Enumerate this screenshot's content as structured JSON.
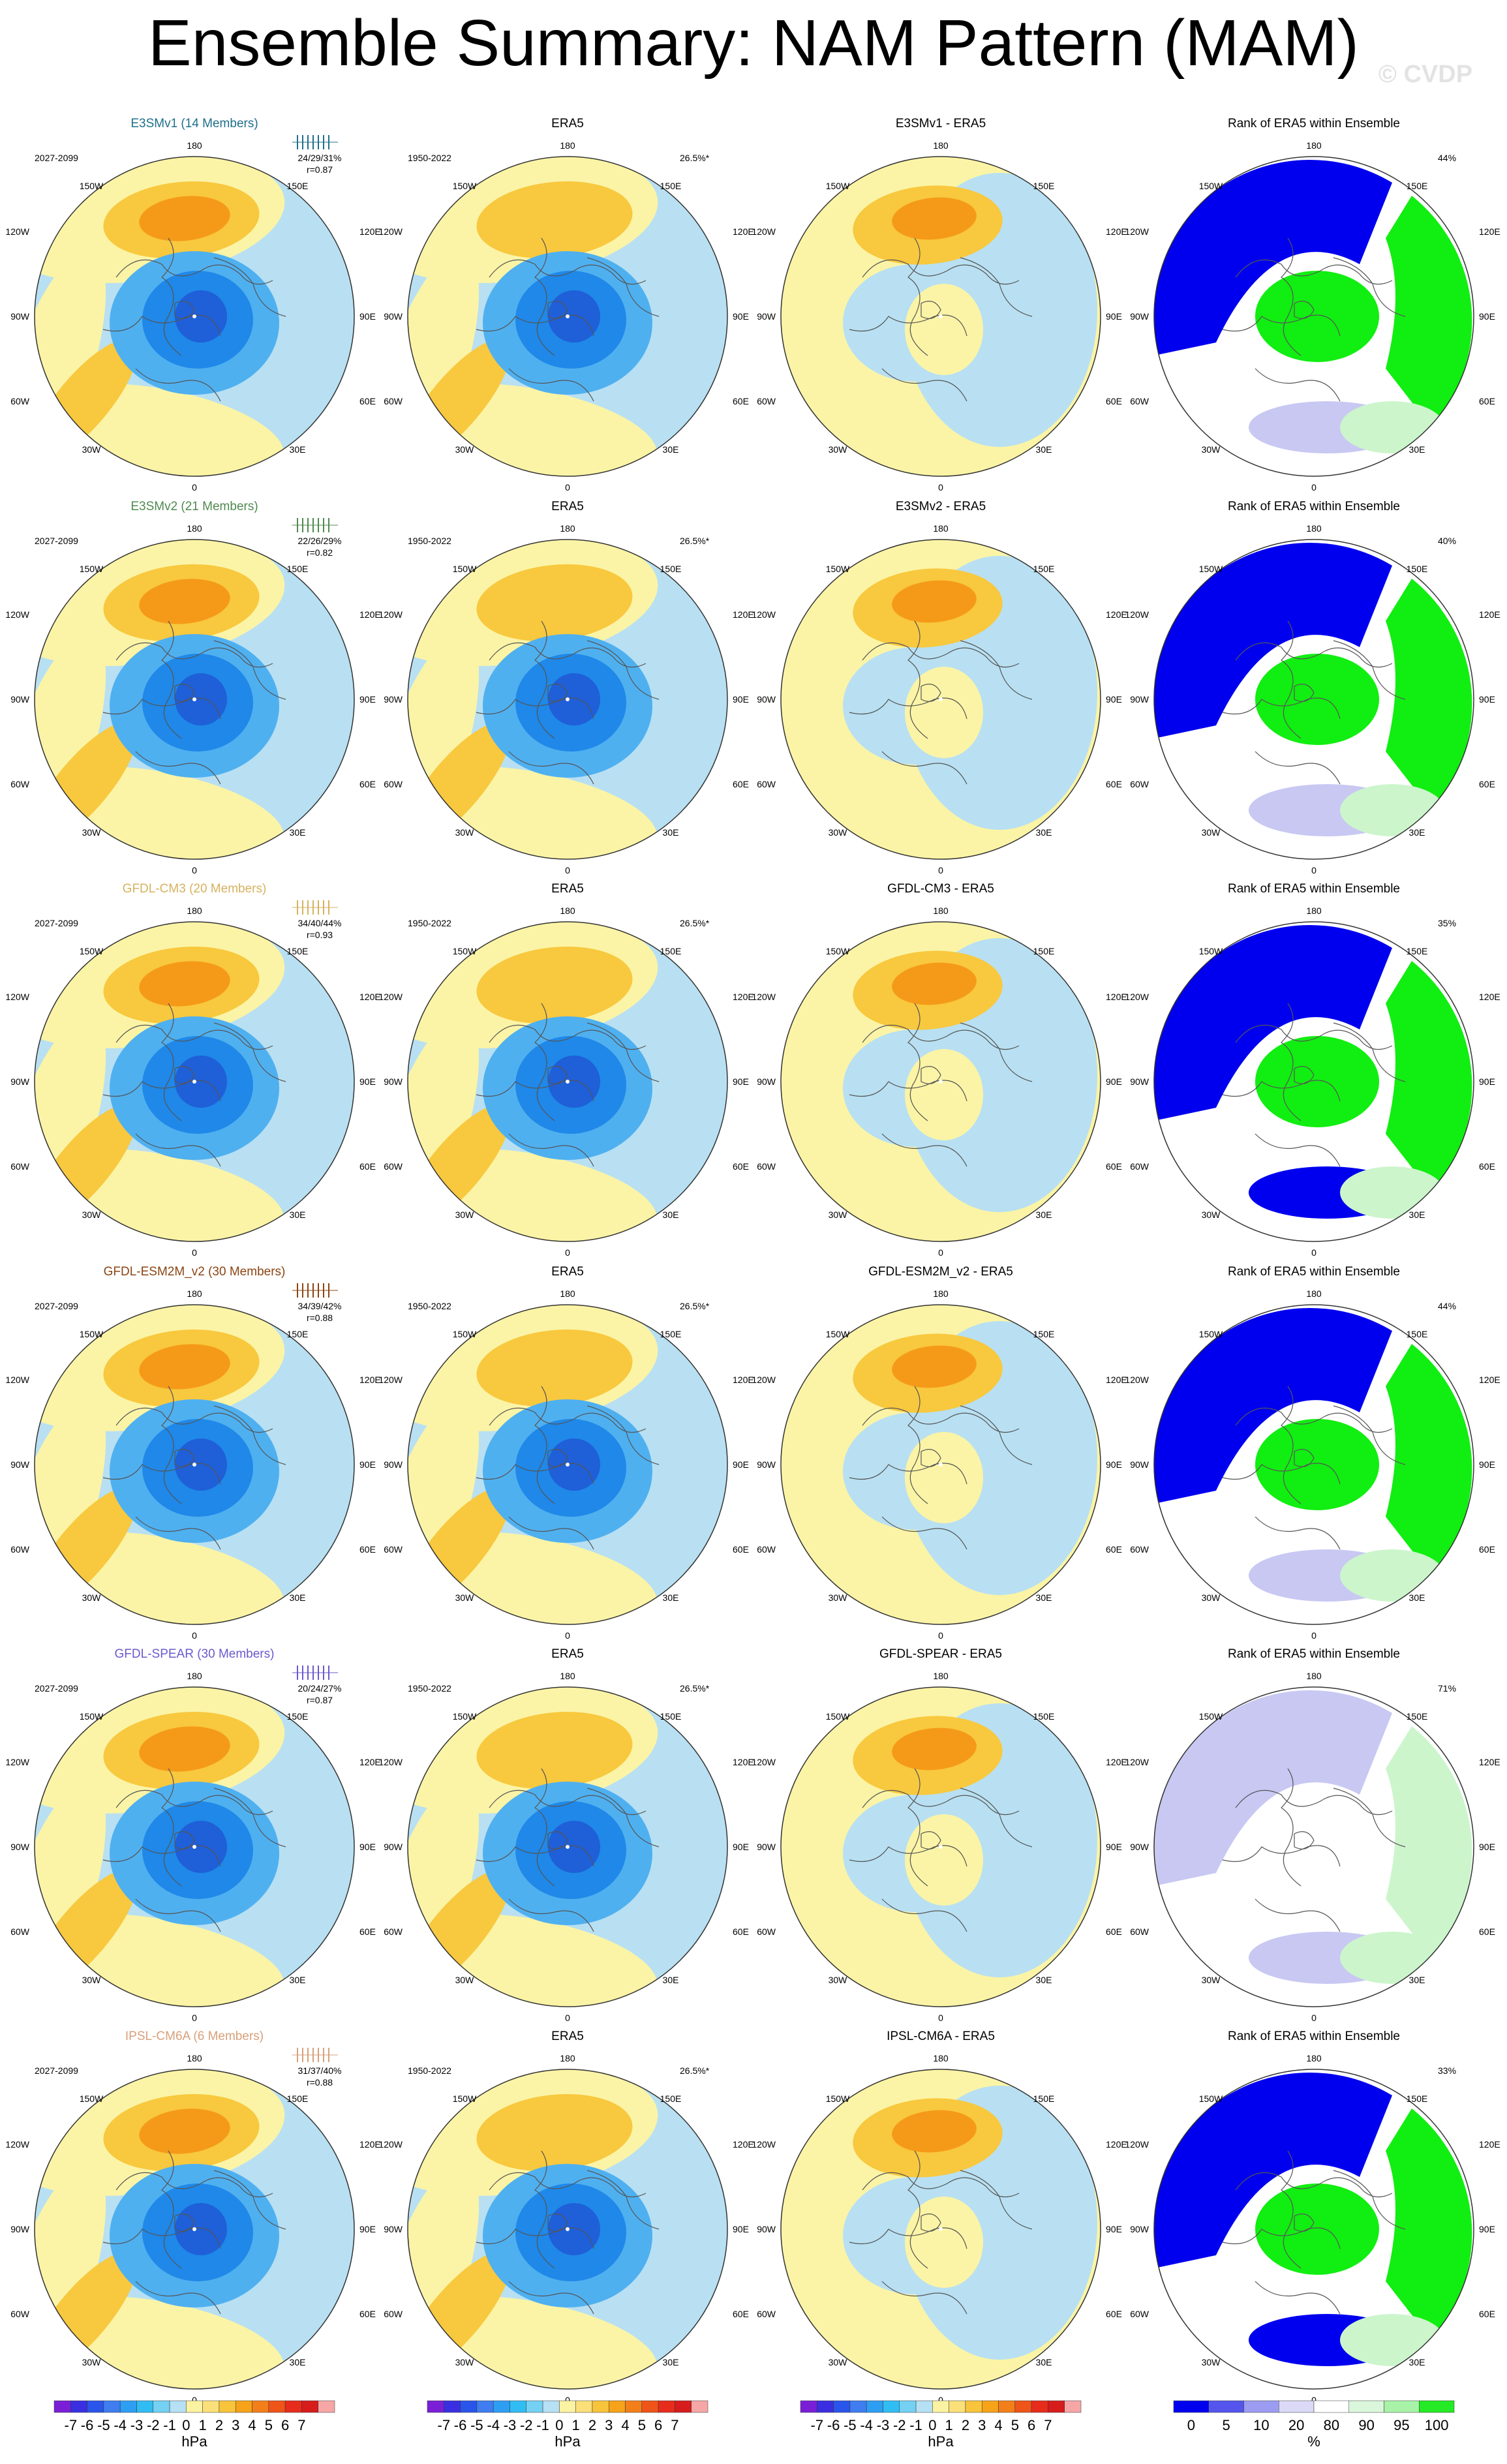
{
  "title": "Ensemble Summary: NAM Pattern (MAM)",
  "copyright": "© CVDP",
  "longitude_labels": {
    "top": "180",
    "upper_left": "150W",
    "upper_right": "150E",
    "left_upper": "120W",
    "right_upper": "120E",
    "left": "90W",
    "right": "90E",
    "left_lower": "60W",
    "right_lower": "60E",
    "lower_left": "30W",
    "lower_right": "30E",
    "bottom": "0"
  },
  "rows": [
    {
      "model": "E3SMv1 (14 Members)",
      "model_color": "#1f6f8b",
      "model_period": "2027-2099",
      "pct_stats": "24/29/31%",
      "corr": "r=0.87",
      "obs_title": "ERA5",
      "obs_period": "1950-2022",
      "obs_pct": "26.5%*",
      "diff_title": "E3SMv1 - ERA5",
      "rank_title": "Rank of ERA5 within Ensemble",
      "rank_pct": "44%"
    },
    {
      "model": "E3SMv2 (21 Members)",
      "model_color": "#4f8a4f",
      "model_period": "2027-2099",
      "pct_stats": "22/26/29%",
      "corr": "r=0.82",
      "obs_title": "ERA5",
      "obs_period": "1950-2022",
      "obs_pct": "26.5%*",
      "diff_title": "E3SMv2 - ERA5",
      "rank_title": "Rank of ERA5 within Ensemble",
      "rank_pct": "40%"
    },
    {
      "model": "GFDL-CM3 (20 Members)",
      "model_color": "#d6b25e",
      "model_period": "2027-2099",
      "pct_stats": "34/40/44%",
      "corr": "r=0.93",
      "obs_title": "ERA5",
      "obs_period": "1950-2022",
      "obs_pct": "26.5%*",
      "diff_title": "GFDL-CM3 - ERA5",
      "rank_title": "Rank of ERA5 within Ensemble",
      "rank_pct": "35%"
    },
    {
      "model": "GFDL-ESM2M_v2 (30 Members)",
      "model_color": "#8b4513",
      "model_period": "2027-2099",
      "pct_stats": "34/39/42%",
      "corr": "r=0.88",
      "obs_title": "ERA5",
      "obs_period": "1950-2022",
      "obs_pct": "26.5%*",
      "diff_title": "GFDL-ESM2M_v2 - ERA5",
      "rank_title": "Rank of ERA5 within Ensemble",
      "rank_pct": "44%"
    },
    {
      "model": "GFDL-SPEAR (30 Members)",
      "model_color": "#6a5acd",
      "model_period": "2027-2099",
      "pct_stats": "20/24/27%",
      "corr": "r=0.87",
      "obs_title": "ERA5",
      "obs_period": "1950-2022",
      "obs_pct": "26.5%*",
      "diff_title": "GFDL-SPEAR - ERA5",
      "rank_title": "Rank of ERA5 within Ensemble",
      "rank_pct": "71%"
    },
    {
      "model": "IPSL-CM6A (6 Members)",
      "model_color": "#d8a07a",
      "model_period": "2027-2099",
      "pct_stats": "31/37/40%",
      "corr": "r=0.88",
      "obs_title": "ERA5",
      "obs_period": "1950-2022",
      "obs_pct": "26.5%*",
      "diff_title": "IPSL-CM6A - ERA5",
      "rank_title": "Rank of ERA5 within Ensemble",
      "rank_pct": "33%"
    }
  ],
  "colorbar": {
    "labels": [
      "-7",
      "-6",
      "-5",
      "-4",
      "-3",
      "-2",
      "-1",
      "0",
      "1",
      "2",
      "3",
      "4",
      "5",
      "6",
      "7"
    ],
    "unit": "hPa",
    "colors": [
      "#7a1fd6",
      "#3a2fe0",
      "#2a55ea",
      "#3f7df0",
      "#2e9ef3",
      "#31bdf3",
      "#74d1f3",
      "#b6e0f3",
      "#fbf3a2",
      "#fbe07a",
      "#f7c43b",
      "#f6a31a",
      "#f37f1a",
      "#ef5419",
      "#e82c1c",
      "#d71c1c",
      "#f7a6a6"
    ]
  },
  "rank_colorbar": {
    "labels": [
      "0",
      "5",
      "10",
      "20",
      "80",
      "90",
      "95",
      "100"
    ],
    "unit": "%",
    "colors": [
      "#0000ee",
      "#5555ee",
      "#9c9cf3",
      "#dadaf7",
      "#ffffff",
      "#dbf7db",
      "#a8f3a8",
      "#25ea25"
    ]
  },
  "palette": {
    "neg3": "#1f88e8",
    "neg2": "#4fb0f0",
    "neg1": "#b8e0f2",
    "pos1": "#fbf4a6",
    "pos2": "#f8c83e",
    "pos3": "#f59a18",
    "pos4": "#ee5418",
    "rank_blue": "#0000ee",
    "rank_lblue": "#c8c8f3",
    "rank_green": "#11ee11",
    "rank_lgreen": "#ccf5cc"
  }
}
